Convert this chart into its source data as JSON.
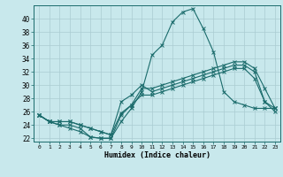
{
  "xlabel": "Humidex (Indice chaleur)",
  "background_color": "#c8e8ec",
  "line_color": "#1a6b6b",
  "grid_color": "#aaccd2",
  "x": [
    0,
    1,
    2,
    3,
    4,
    5,
    6,
    7,
    8,
    9,
    10,
    11,
    12,
    13,
    14,
    15,
    16,
    17,
    18,
    19,
    20,
    21,
    22,
    23
  ],
  "line1": [
    25.5,
    24.5,
    24.0,
    24.0,
    23.5,
    22.2,
    22.0,
    22.0,
    24.5,
    26.5,
    29.0,
    34.5,
    36.0,
    39.5,
    41.0,
    41.5,
    38.5,
    35.0,
    29.0,
    27.5,
    27.0,
    26.5,
    26.5,
    26.5
  ],
  "line2": [
    25.5,
    24.5,
    24.0,
    23.5,
    23.0,
    22.2,
    22.0,
    22.0,
    25.5,
    27.0,
    29.5,
    29.5,
    30.0,
    30.5,
    31.0,
    31.5,
    32.0,
    32.5,
    33.0,
    33.5,
    33.5,
    32.5,
    29.5,
    26.5
  ],
  "line3": [
    25.5,
    24.5,
    24.5,
    24.5,
    24.0,
    23.5,
    23.0,
    22.5,
    27.5,
    28.5,
    30.0,
    29.0,
    29.5,
    30.0,
    30.5,
    31.0,
    31.5,
    32.0,
    32.5,
    33.0,
    33.0,
    32.0,
    27.5,
    26.0
  ],
  "line4": [
    25.5,
    24.5,
    24.5,
    24.5,
    24.0,
    23.5,
    23.0,
    22.5,
    25.8,
    27.0,
    28.5,
    28.5,
    29.0,
    29.5,
    30.0,
    30.5,
    31.0,
    31.5,
    32.0,
    32.5,
    32.5,
    31.0,
    27.5,
    26.5
  ],
  "ylim": [
    21.5,
    42
  ],
  "xlim": [
    -0.5,
    23.5
  ],
  "yticks": [
    22,
    24,
    26,
    28,
    30,
    32,
    34,
    36,
    38,
    40
  ],
  "xticks": [
    0,
    1,
    2,
    3,
    4,
    5,
    6,
    7,
    8,
    9,
    10,
    11,
    12,
    13,
    14,
    15,
    16,
    17,
    18,
    19,
    20,
    21,
    22,
    23
  ]
}
